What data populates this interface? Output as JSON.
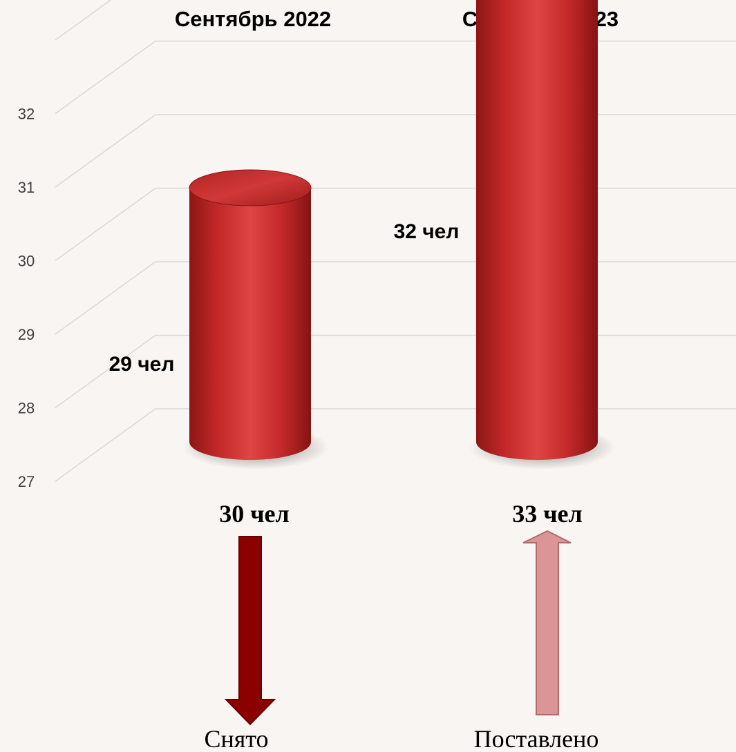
{
  "chart_data": {
    "type": "bar",
    "style": "3d-cylinder",
    "categories": [
      "Сентябрь 2022",
      "Сентябрь 2023"
    ],
    "values": [
      29,
      32
    ],
    "data_labels": [
      "29 чел",
      "32 чел"
    ],
    "yticks": [
      27,
      28,
      29,
      30,
      31,
      32
    ],
    "ylim": [
      27,
      33
    ],
    "grid": true,
    "bar_color": "#d43535",
    "category_axis_position": "top"
  },
  "totals": [
    {
      "label": "30 чел",
      "direction": "down",
      "color": "#8b0000"
    },
    {
      "label": "33 чел",
      "direction": "up",
      "color": "#dc9597"
    }
  ],
  "captions": [
    "Снято",
    "Поставлено"
  ]
}
